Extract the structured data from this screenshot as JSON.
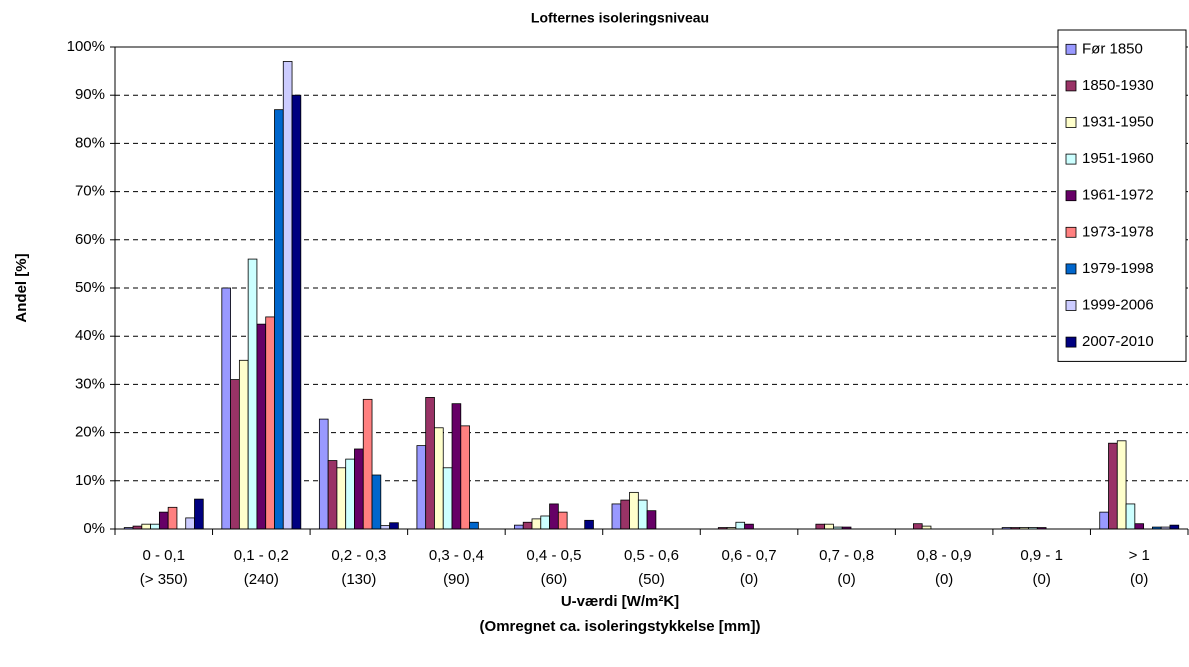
{
  "chart_data": {
    "type": "bar",
    "title": "Lofternes isoleringsniveau",
    "y_label": "Andel [%]",
    "x_label": "U-værdi [W/m²K]",
    "x_sublabel": "(Omregnet ca. isoleringstykkelse [mm])",
    "categories": [
      "0 - 0,1",
      "0,1 - 0,2",
      "0,2 - 0,3",
      "0,3 - 0,4",
      "0,4 - 0,5",
      "0,5 - 0,6",
      "0,6 - 0,7",
      "0,7 - 0,8",
      "0,8 - 0,9",
      "0,9 - 1",
      "> 1"
    ],
    "category_notes": [
      "(> 350)",
      "(240)",
      "(130)",
      "(90)",
      "(60)",
      "(50)",
      "(0)",
      "(0)",
      "(0)",
      "(0)",
      "(0)"
    ],
    "series": [
      {
        "name": "Før 1850",
        "color": "#9999ff",
        "values": [
          0.3,
          50,
          22.8,
          17.3,
          0.8,
          5.2,
          0,
          0,
          0,
          0.3,
          3.5
        ]
      },
      {
        "name": "1850-1930",
        "color": "#993366",
        "values": [
          0.6,
          31,
          14.2,
          27.3,
          1.4,
          6,
          0.3,
          1,
          1.1,
          0.3,
          17.8
        ]
      },
      {
        "name": "1931-1950",
        "color": "#ffffcc",
        "values": [
          1,
          35,
          12.7,
          21,
          2.1,
          7.6,
          0.3,
          1,
          0.6,
          0.3,
          18.3
        ]
      },
      {
        "name": "1951-1960",
        "color": "#ccffff",
        "values": [
          1,
          56,
          14.5,
          12.7,
          2.7,
          6,
          1.4,
          0.4,
          0,
          0.3,
          5.2
        ]
      },
      {
        "name": "1961-1972",
        "color": "#660066",
        "values": [
          3.5,
          42.5,
          16.6,
          26,
          5.2,
          3.8,
          1,
          0.4,
          0,
          0.3,
          1.1
        ]
      },
      {
        "name": "1973-1978",
        "color": "#ff8080",
        "values": [
          4.5,
          44,
          26.9,
          21.4,
          3.5,
          0,
          0,
          0,
          0,
          0,
          0
        ]
      },
      {
        "name": "1979-1998",
        "color": "#0066cc",
        "values": [
          0,
          87,
          11.2,
          1.4,
          0,
          0,
          0,
          0,
          0,
          0,
          0.4
        ]
      },
      {
        "name": "1999-2006",
        "color": "#ccccff",
        "values": [
          2.3,
          97,
          0.7,
          0,
          0,
          0,
          0,
          0,
          0,
          0,
          0.4
        ]
      },
      {
        "name": "2007-2010",
        "color": "#000080",
        "values": [
          6.2,
          90,
          1.3,
          0,
          1.8,
          0,
          0,
          0,
          0,
          0,
          0.8
        ]
      }
    ],
    "ylim": [
      0,
      100
    ],
    "yticks": [
      {
        "value": 0,
        "label": "0%"
      },
      {
        "value": 10,
        "label": "10%"
      },
      {
        "value": 20,
        "label": "20%"
      },
      {
        "value": 30,
        "label": "30%"
      },
      {
        "value": 40,
        "label": "40%"
      },
      {
        "value": 50,
        "label": "50%"
      },
      {
        "value": 60,
        "label": "60%"
      },
      {
        "value": 70,
        "label": "70%"
      },
      {
        "value": 80,
        "label": "80%"
      },
      {
        "value": 90,
        "label": "90%"
      },
      {
        "value": 100,
        "label": "100%"
      }
    ],
    "grid": true,
    "legend": "top-right"
  }
}
